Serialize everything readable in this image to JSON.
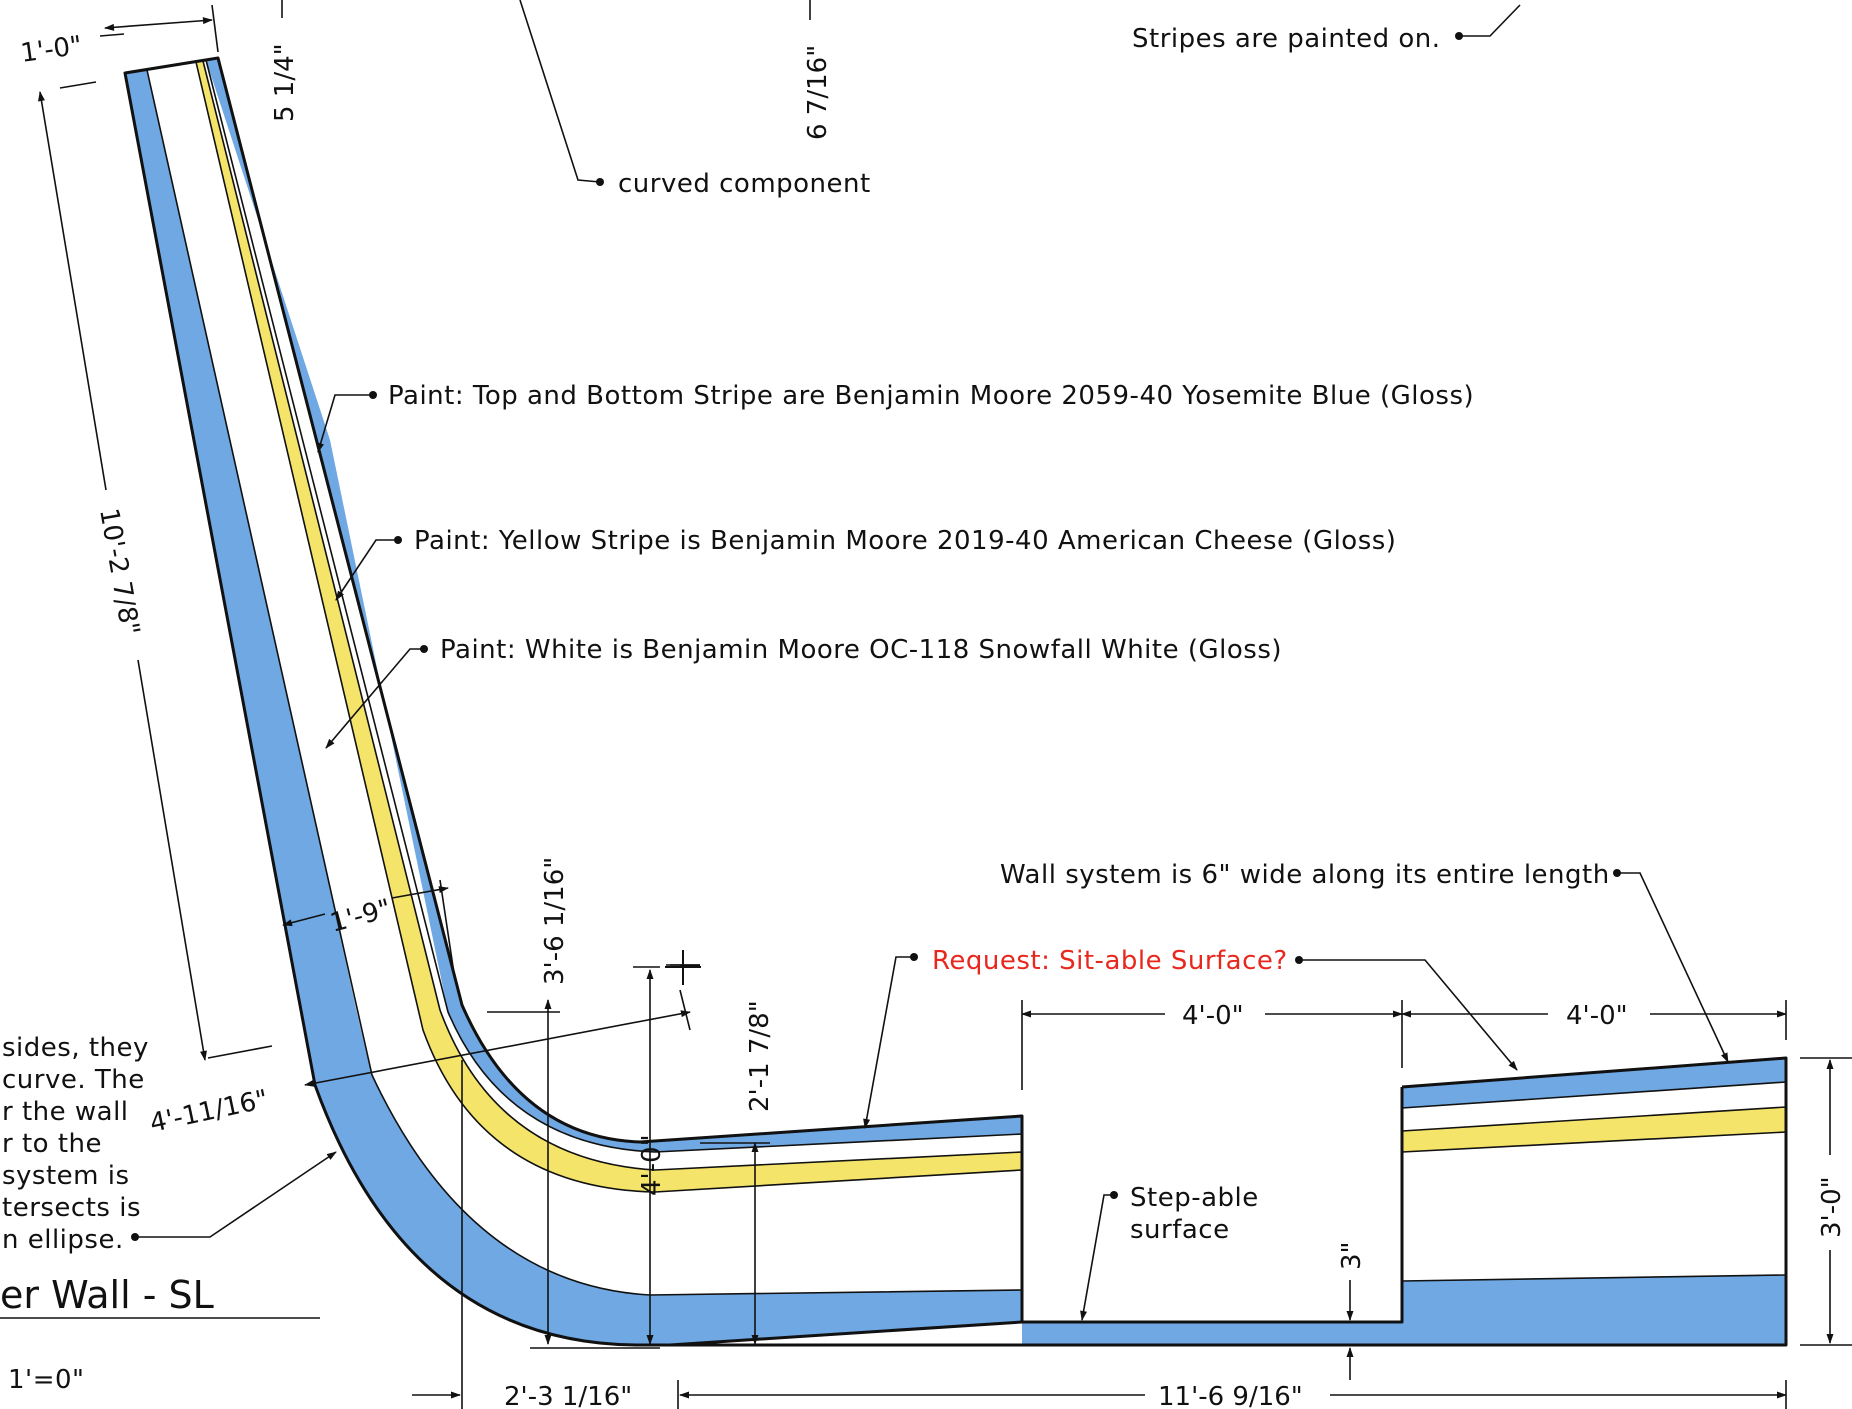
{
  "colors": {
    "stripe_blue": "#6fa8e3",
    "stripe_yellow": "#f5e46a",
    "stripe_white": "#ffffff",
    "line": "#111111",
    "request_red": "#e8281e"
  },
  "notes": {
    "stripes_painted": "Stripes are painted on.",
    "curved_component": "curved component",
    "paint_blue": "Paint: Top and Bottom Stripe are Benjamin Moore 2059-40 Yosemite Blue (Gloss)",
    "paint_yellow": "Paint: Yellow Stripe is Benjamin Moore 2019-40 American Cheese (Gloss)",
    "paint_white": "Paint: White is Benjamin Moore OC-118 Snowfall White (Gloss)",
    "wall_system_width": "Wall system is 6\" wide along its entire length",
    "request": "Request: Sit-able Surface?",
    "step_line1": "Step-able",
    "step_line2": "surface",
    "side_note": [
      "sides, they",
      "curve. The",
      "r the wall",
      "r to the",
      "system is",
      "tersects is",
      "n ellipse."
    ]
  },
  "dimensions": {
    "top_width": "1'-0\"",
    "d_5_1_4": "5 1/4\"",
    "d_6_7_16": "6 7/16\"",
    "d_10_2_7_8": "10'-2 7/8\"",
    "d_1_9": "1'-9\"",
    "d_4_11_16": "4'-11/16\"",
    "d_3_6_1_16": "3'-6 1/16\"",
    "d_4_0_v": "4'-0\"",
    "d_2_1_7_8": "2'-1 7/8\"",
    "d_4_0_a": "4'-0\"",
    "d_4_0_b": "4'-0\"",
    "d_3_0": "3'-0\"",
    "d_3in": "3\"",
    "d_2_3_1_16": "2'-3 1/16\"",
    "d_11_6_9_16": "11'-6 9/16\""
  },
  "title_block": {
    "title": "er Wall - SL",
    "scale": "1'=0\""
  }
}
